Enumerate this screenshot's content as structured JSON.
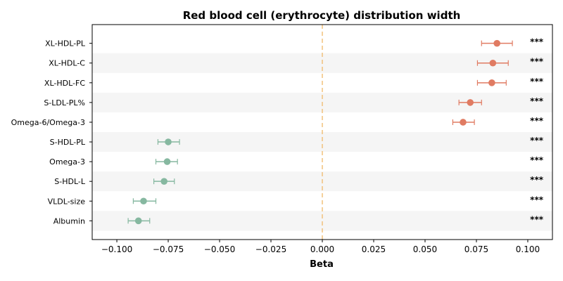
{
  "chart_data": {
    "type": "scatter",
    "title": "Red blood cell (erythrocyte) distribution width",
    "xlabel": "Beta",
    "ylabel": "",
    "xlim": [
      -0.112,
      0.112
    ],
    "xticks": [
      -0.1,
      -0.075,
      -0.05,
      -0.025,
      0.0,
      0.025,
      0.05,
      0.075,
      0.1
    ],
    "xtick_labels": [
      "−0.100",
      "−0.075",
      "−0.050",
      "−0.025",
      "0.000",
      "0.025",
      "0.050",
      "0.075",
      "0.100"
    ],
    "reference_line": 0.0,
    "grid": false,
    "row_shading": "alternating",
    "positive_color": "#E07B62",
    "negative_color": "#86B8A0",
    "reference_line_color": "#F2C27C",
    "points": [
      {
        "label": "XL-HDL-PL",
        "beta": 0.085,
        "ci_low": 0.0775,
        "ci_high": 0.0925,
        "sig": "***"
      },
      {
        "label": "XL-HDL-C",
        "beta": 0.083,
        "ci_low": 0.0755,
        "ci_high": 0.0905,
        "sig": "***"
      },
      {
        "label": "XL-HDL-FC",
        "beta": 0.0825,
        "ci_low": 0.0755,
        "ci_high": 0.0895,
        "sig": "***"
      },
      {
        "label": "S-LDL-PL%",
        "beta": 0.072,
        "ci_low": 0.0665,
        "ci_high": 0.0775,
        "sig": "***"
      },
      {
        "label": "Omega-6/Omega-3",
        "beta": 0.0685,
        "ci_low": 0.0635,
        "ci_high": 0.074,
        "sig": "***"
      },
      {
        "label": "S-HDL-PL",
        "beta": -0.075,
        "ci_low": -0.08,
        "ci_high": -0.0695,
        "sig": "***"
      },
      {
        "label": "Omega-3",
        "beta": -0.0755,
        "ci_low": -0.081,
        "ci_high": -0.0705,
        "sig": "***"
      },
      {
        "label": "S-HDL-L",
        "beta": -0.077,
        "ci_low": -0.082,
        "ci_high": -0.072,
        "sig": "***"
      },
      {
        "label": "VLDL-size",
        "beta": -0.087,
        "ci_low": -0.092,
        "ci_high": -0.081,
        "sig": "***"
      },
      {
        "label": "Albumin",
        "beta": -0.0895,
        "ci_low": -0.0945,
        "ci_high": -0.084,
        "sig": "***"
      }
    ]
  }
}
